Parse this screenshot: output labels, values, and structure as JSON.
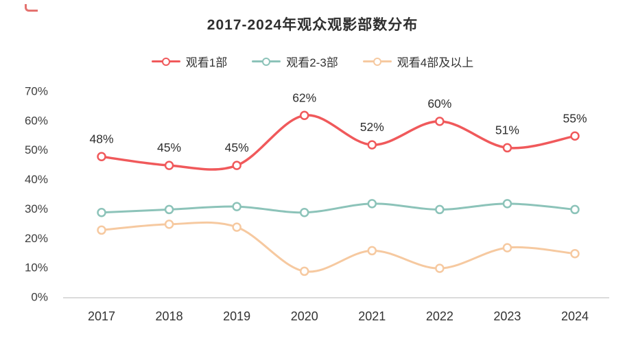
{
  "chart_data": {
    "type": "line",
    "title": "2017-2024年观众观影部数分布",
    "x": [
      "2017",
      "2018",
      "2019",
      "2020",
      "2021",
      "2022",
      "2023",
      "2024"
    ],
    "series": [
      {
        "name": "观看1部",
        "color": "#f0595b",
        "values": [
          48,
          45,
          45,
          62,
          52,
          60,
          51,
          55
        ],
        "labels": [
          "48%",
          "45%",
          "45%",
          "62%",
          "52%",
          "60%",
          "51%",
          "55%"
        ],
        "show_labels": true
      },
      {
        "name": "观看2-3部",
        "color": "#8cc3b9",
        "values": [
          29,
          30,
          31,
          29,
          32,
          30,
          32,
          30
        ],
        "show_labels": false
      },
      {
        "name": "观看4部及以上",
        "color": "#f6c9a0",
        "values": [
          23,
          25,
          24,
          9,
          16,
          10,
          17,
          15
        ],
        "show_labels": false
      }
    ],
    "ylim": [
      0,
      70
    ],
    "yticks": [
      "0%",
      "10%",
      "20%",
      "30%",
      "40%",
      "50%",
      "60%",
      "70%"
    ],
    "ytick_values": [
      0,
      10,
      20,
      30,
      40,
      50,
      60,
      70
    ],
    "grid": false,
    "legend_position": "top",
    "smooth": true
  },
  "colors": {
    "text": "#333333",
    "title": "#2f2f2f",
    "axis_line": "#cfcfcf",
    "label_text": "#2f2f2f"
  }
}
